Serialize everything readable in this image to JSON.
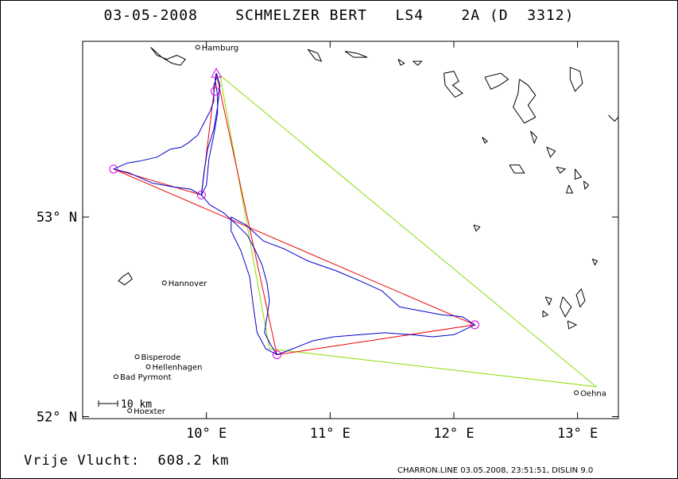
{
  "header": {
    "date": "03-05-2008",
    "pilot": "SCHMELZER BERT",
    "class": "LS4",
    "glider": "2A (D  3312)"
  },
  "footer": {
    "distance_label": "Vrije Vlucht:",
    "distance_value": "608.2 km",
    "credit": "CHARRON.LINE 03.05.2008, 23:51:51, DISLIN 9.0"
  },
  "map": {
    "lon_min": 9.0,
    "lon_max": 13.33,
    "lat_min": 51.99,
    "lat_max": 53.88,
    "x_ticks": [
      {
        "value": 10,
        "label": "10° E"
      },
      {
        "value": 11,
        "label": "11° E"
      },
      {
        "value": 12,
        "label": "12° E"
      },
      {
        "value": 13,
        "label": "13° E"
      }
    ],
    "y_ticks": [
      {
        "value": 53,
        "label": "53° N"
      },
      {
        "value": 52,
        "label": "52° N"
      }
    ],
    "scale_label": "10 km",
    "colors": {
      "track": "#0000cc",
      "task": "#ee0000",
      "closing": "#88dd00",
      "turnpoint": "#dd00dd",
      "coast": "#000000"
    },
    "cities": [
      {
        "name": "Hamburg",
        "lon": 9.93,
        "lat": 53.85
      },
      {
        "name": "Hannover",
        "lon": 9.66,
        "lat": 52.67
      },
      {
        "name": "Bisperode",
        "lon": 9.44,
        "lat": 52.3
      },
      {
        "name": "Hellenhagen",
        "lon": 9.53,
        "lat": 52.25
      },
      {
        "name": "Bad Pyrmont",
        "lon": 9.27,
        "lat": 52.2
      },
      {
        "name": "Hoexter",
        "lon": 9.38,
        "lat": 52.03
      },
      {
        "name": "Oehna",
        "lon": 12.99,
        "lat": 52.12
      }
    ],
    "start": {
      "lon": 10.08,
      "lat": 53.72
    },
    "turnpoints": [
      {
        "lon": 10.07,
        "lat": 53.63
      },
      {
        "lon": 9.25,
        "lat": 53.24
      },
      {
        "lon": 9.96,
        "lat": 53.11
      },
      {
        "lon": 10.57,
        "lat": 52.31
      },
      {
        "lon": 12.17,
        "lat": 52.46
      }
    ],
    "task_path": [
      [
        10.08,
        53.72
      ],
      [
        9.96,
        53.11
      ],
      [
        9.25,
        53.24
      ],
      [
        12.17,
        52.46
      ],
      [
        10.57,
        52.31
      ],
      [
        10.08,
        53.72
      ]
    ],
    "closing_path": [
      [
        10.11,
        53.71
      ],
      [
        13.15,
        52.15
      ],
      [
        10.51,
        52.34
      ],
      [
        10.11,
        53.71
      ]
    ],
    "track": [
      [
        10.09,
        53.71
      ],
      [
        10.06,
        53.66
      ],
      [
        10.06,
        53.58
      ],
      [
        10.03,
        53.53
      ],
      [
        9.98,
        53.47
      ],
      [
        9.93,
        53.41
      ],
      [
        9.85,
        53.37
      ],
      [
        9.8,
        53.35
      ],
      [
        9.71,
        53.34
      ],
      [
        9.6,
        53.3
      ],
      [
        9.46,
        53.28
      ],
      [
        9.36,
        53.27
      ],
      [
        9.25,
        53.24
      ],
      [
        9.38,
        53.22
      ],
      [
        9.56,
        53.17
      ],
      [
        9.74,
        53.15
      ],
      [
        9.87,
        53.14
      ],
      [
        9.96,
        53.11
      ],
      [
        10.0,
        53.16
      ],
      [
        10.02,
        53.29
      ],
      [
        10.06,
        53.41
      ],
      [
        10.09,
        53.52
      ],
      [
        10.09,
        53.61
      ],
      [
        10.07,
        53.69
      ],
      [
        10.08,
        53.72
      ],
      [
        10.11,
        53.66
      ],
      [
        10.09,
        53.55
      ],
      [
        10.06,
        53.44
      ],
      [
        10.01,
        53.34
      ],
      [
        9.98,
        53.22
      ],
      [
        9.96,
        53.11
      ],
      [
        10.03,
        53.06
      ],
      [
        10.14,
        53.02
      ],
      [
        10.23,
        52.97
      ],
      [
        10.33,
        52.91
      ],
      [
        10.39,
        52.84
      ],
      [
        10.45,
        52.76
      ],
      [
        10.49,
        52.67
      ],
      [
        10.51,
        52.58
      ],
      [
        10.49,
        52.5
      ],
      [
        10.47,
        52.42
      ],
      [
        10.52,
        52.36
      ],
      [
        10.57,
        52.31
      ],
      [
        10.7,
        52.34
      ],
      [
        10.86,
        52.38
      ],
      [
        11.03,
        52.4
      ],
      [
        11.24,
        52.41
      ],
      [
        11.44,
        52.42
      ],
      [
        11.66,
        52.41
      ],
      [
        11.83,
        52.4
      ],
      [
        12.0,
        52.41
      ],
      [
        12.17,
        52.46
      ],
      [
        12.07,
        52.5
      ],
      [
        11.9,
        52.51
      ],
      [
        11.73,
        52.53
      ],
      [
        11.56,
        52.55
      ],
      [
        11.42,
        52.63
      ],
      [
        11.24,
        52.68
      ],
      [
        11.05,
        52.73
      ],
      [
        10.82,
        52.78
      ],
      [
        10.63,
        52.84
      ],
      [
        10.46,
        52.88
      ],
      [
        10.32,
        52.96
      ],
      [
        10.2,
        53.0
      ],
      [
        10.2,
        52.93
      ],
      [
        10.28,
        52.83
      ],
      [
        10.35,
        52.7
      ],
      [
        10.38,
        52.55
      ],
      [
        10.41,
        52.42
      ],
      [
        10.48,
        52.34
      ],
      [
        10.57,
        52.31
      ]
    ],
    "coast": [
      [
        [
          9.55,
          53.85
        ],
        [
          9.6,
          53.81
        ],
        [
          9.68,
          53.79
        ],
        [
          9.76,
          53.81
        ],
        [
          9.83,
          53.79
        ],
        [
          9.79,
          53.76
        ],
        [
          9.72,
          53.77
        ],
        [
          9.64,
          53.8
        ],
        [
          9.55,
          53.85
        ]
      ],
      [
        [
          10.82,
          53.84
        ],
        [
          10.9,
          53.82
        ],
        [
          10.93,
          53.78
        ],
        [
          10.88,
          53.79
        ],
        [
          10.82,
          53.84
        ]
      ],
      [
        [
          11.12,
          53.83
        ],
        [
          11.22,
          53.82
        ],
        [
          11.3,
          53.8
        ],
        [
          11.19,
          53.8
        ],
        [
          11.12,
          53.83
        ]
      ],
      [
        [
          11.55,
          53.79
        ],
        [
          11.6,
          53.77
        ],
        [
          11.57,
          53.76
        ],
        [
          11.55,
          53.79
        ]
      ],
      [
        [
          11.67,
          53.78
        ],
        [
          11.74,
          53.78
        ],
        [
          11.71,
          53.76
        ],
        [
          11.67,
          53.78
        ]
      ],
      [
        [
          11.92,
          53.72
        ],
        [
          12.0,
          53.73
        ],
        [
          12.04,
          53.68
        ],
        [
          11.99,
          53.66
        ],
        [
          12.07,
          53.62
        ],
        [
          12.01,
          53.6
        ],
        [
          11.93,
          53.66
        ],
        [
          11.92,
          53.72
        ]
      ],
      [
        [
          12.25,
          53.7
        ],
        [
          12.38,
          53.72
        ],
        [
          12.44,
          53.69
        ],
        [
          12.37,
          53.66
        ],
        [
          12.3,
          53.64
        ],
        [
          12.25,
          53.7
        ]
      ],
      [
        [
          12.53,
          53.69
        ],
        [
          12.6,
          53.66
        ],
        [
          12.66,
          53.61
        ],
        [
          12.6,
          53.56
        ],
        [
          12.66,
          53.5
        ],
        [
          12.57,
          53.47
        ],
        [
          12.48,
          53.55
        ],
        [
          12.52,
          53.62
        ],
        [
          12.53,
          53.69
        ]
      ],
      [
        [
          12.94,
          53.75
        ],
        [
          13.02,
          53.73
        ],
        [
          13.04,
          53.67
        ],
        [
          12.98,
          53.63
        ],
        [
          12.94,
          53.69
        ],
        [
          12.94,
          53.75
        ]
      ],
      [
        [
          12.62,
          53.43
        ],
        [
          12.67,
          53.4
        ],
        [
          12.65,
          53.37
        ],
        [
          12.62,
          53.43
        ]
      ],
      [
        [
          13.25,
          53.51
        ],
        [
          13.3,
          53.48
        ],
        [
          13.33,
          53.5
        ]
      ],
      [
        [
          12.75,
          53.35
        ],
        [
          12.82,
          53.33
        ],
        [
          12.78,
          53.3
        ],
        [
          12.75,
          53.35
        ]
      ],
      [
        [
          12.83,
          53.25
        ],
        [
          12.9,
          53.24
        ],
        [
          12.86,
          53.22
        ],
        [
          12.83,
          53.25
        ]
      ],
      [
        [
          12.23,
          53.4
        ],
        [
          12.27,
          53.38
        ],
        [
          12.25,
          53.37
        ],
        [
          12.23,
          53.4
        ]
      ],
      [
        [
          12.45,
          53.26
        ],
        [
          12.53,
          53.26
        ],
        [
          12.57,
          53.22
        ],
        [
          12.49,
          53.22
        ],
        [
          12.45,
          53.26
        ]
      ],
      [
        [
          12.98,
          53.24
        ],
        [
          13.03,
          53.2
        ],
        [
          12.98,
          53.19
        ],
        [
          12.98,
          53.24
        ]
      ],
      [
        [
          12.93,
          53.16
        ],
        [
          12.96,
          53.12
        ],
        [
          12.91,
          53.12
        ],
        [
          12.93,
          53.16
        ]
      ],
      [
        [
          13.05,
          53.18
        ],
        [
          13.09,
          53.16
        ],
        [
          13.06,
          53.14
        ],
        [
          13.05,
          53.18
        ]
      ],
      [
        [
          12.16,
          52.96
        ],
        [
          12.21,
          52.95
        ],
        [
          12.18,
          52.93
        ],
        [
          12.16,
          52.96
        ]
      ],
      [
        [
          13.12,
          52.79
        ],
        [
          13.16,
          52.78
        ],
        [
          13.14,
          52.76
        ],
        [
          13.12,
          52.79
        ]
      ],
      [
        [
          13.03,
          52.64
        ],
        [
          13.06,
          52.58
        ],
        [
          13.02,
          52.55
        ],
        [
          12.99,
          52.61
        ],
        [
          13.03,
          52.64
        ]
      ],
      [
        [
          12.74,
          52.6
        ],
        [
          12.79,
          52.59
        ],
        [
          12.77,
          52.56
        ],
        [
          12.74,
          52.6
        ]
      ],
      [
        [
          12.88,
          52.6
        ],
        [
          12.95,
          52.55
        ],
        [
          12.9,
          52.5
        ],
        [
          12.86,
          52.55
        ],
        [
          12.88,
          52.6
        ]
      ],
      [
        [
          12.92,
          52.48
        ],
        [
          12.99,
          52.46
        ],
        [
          12.93,
          52.44
        ],
        [
          12.92,
          52.48
        ]
      ],
      [
        [
          12.72,
          52.53
        ],
        [
          12.76,
          52.51
        ],
        [
          12.72,
          52.5
        ],
        [
          12.72,
          52.53
        ]
      ],
      [
        [
          9.32,
          52.7
        ],
        [
          9.37,
          52.72
        ],
        [
          9.4,
          52.69
        ],
        [
          9.34,
          52.66
        ],
        [
          9.29,
          52.68
        ],
        [
          9.32,
          52.7
        ]
      ]
    ]
  }
}
